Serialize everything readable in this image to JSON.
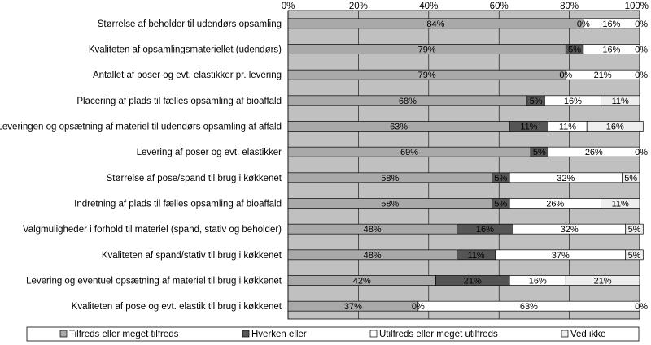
{
  "chart_data": {
    "type": "bar",
    "orientation": "horizontal",
    "stacked": "percent",
    "categories": [
      "Størrelse af beholder til udendørs opsamling",
      "Kvaliteten af opsamlingsmateriellet (udendørs)",
      "Antallet af poser og evt. elastikker pr. levering",
      "Placering af plads til fælles opsamling af bioaffald",
      "Leveringen og opsætning af materiel til udendørs opsamling af affald",
      "Levering af poser og evt. elastikker",
      "Størrelse af pose/spand til brug i køkkenet",
      "Indretning af plads til fælles opsamling af bioaffald",
      "Valgmuligheder i forhold til materiel (spand, stativ og beholder)",
      "Kvaliteten af spand/stativ til brug i køkkenet",
      "Levering og eventuel opsætning af materiel til brug i køkkenet",
      "Kvaliteten af pose og evt. elastik til brug i køkkenet"
    ],
    "series": [
      {
        "name": "Tilfreds eller meget tilfreds",
        "color": "#a9a9a9",
        "values": [
          84,
          79,
          79,
          68,
          63,
          69,
          58,
          58,
          48,
          48,
          42,
          37
        ]
      },
      {
        "name": "Hverken eller",
        "color": "#555555",
        "values": [
          0,
          5,
          0,
          5,
          11,
          5,
          5,
          5,
          16,
          11,
          21,
          0
        ]
      },
      {
        "name": "Utilfreds eller meget utilfreds",
        "color": "#ffffff",
        "values": [
          16,
          16,
          21,
          16,
          11,
          26,
          32,
          26,
          32,
          37,
          16,
          63
        ]
      },
      {
        "name": "Ved ikke",
        "color": "#eeeeee",
        "values": [
          0,
          0,
          0,
          11,
          16,
          0,
          5,
          11,
          5,
          5,
          21,
          0
        ]
      }
    ],
    "value_labels": [
      [
        "84%",
        "0%",
        "16%",
        "0%"
      ],
      [
        "79%",
        "5%",
        "16%",
        "0%"
      ],
      [
        "79%",
        "0%",
        "21%",
        "0%"
      ],
      [
        "68%",
        "5%",
        "16%",
        "11%"
      ],
      [
        "63%",
        "11%",
        "11%",
        "16%"
      ],
      [
        "69%",
        "5%",
        "26%",
        "0%"
      ],
      [
        "58%",
        "5%",
        "32%",
        "5%"
      ],
      [
        "58%",
        "5%",
        "26%",
        "11%"
      ],
      [
        "48%",
        "16%",
        "32%",
        "5%"
      ],
      [
        "48%",
        "11%",
        "37%",
        "5%"
      ],
      [
        "42%",
        "21%",
        "16%",
        "21%"
      ],
      [
        "37%",
        "0%",
        "63%",
        "0%"
      ]
    ],
    "xlim": [
      0,
      100
    ],
    "x_ticks": [
      "0%",
      "20%",
      "40%",
      "60%",
      "80%",
      "100%"
    ],
    "grid": true,
    "legend_position": "bottom",
    "plot_background": "#c0c0c0"
  }
}
